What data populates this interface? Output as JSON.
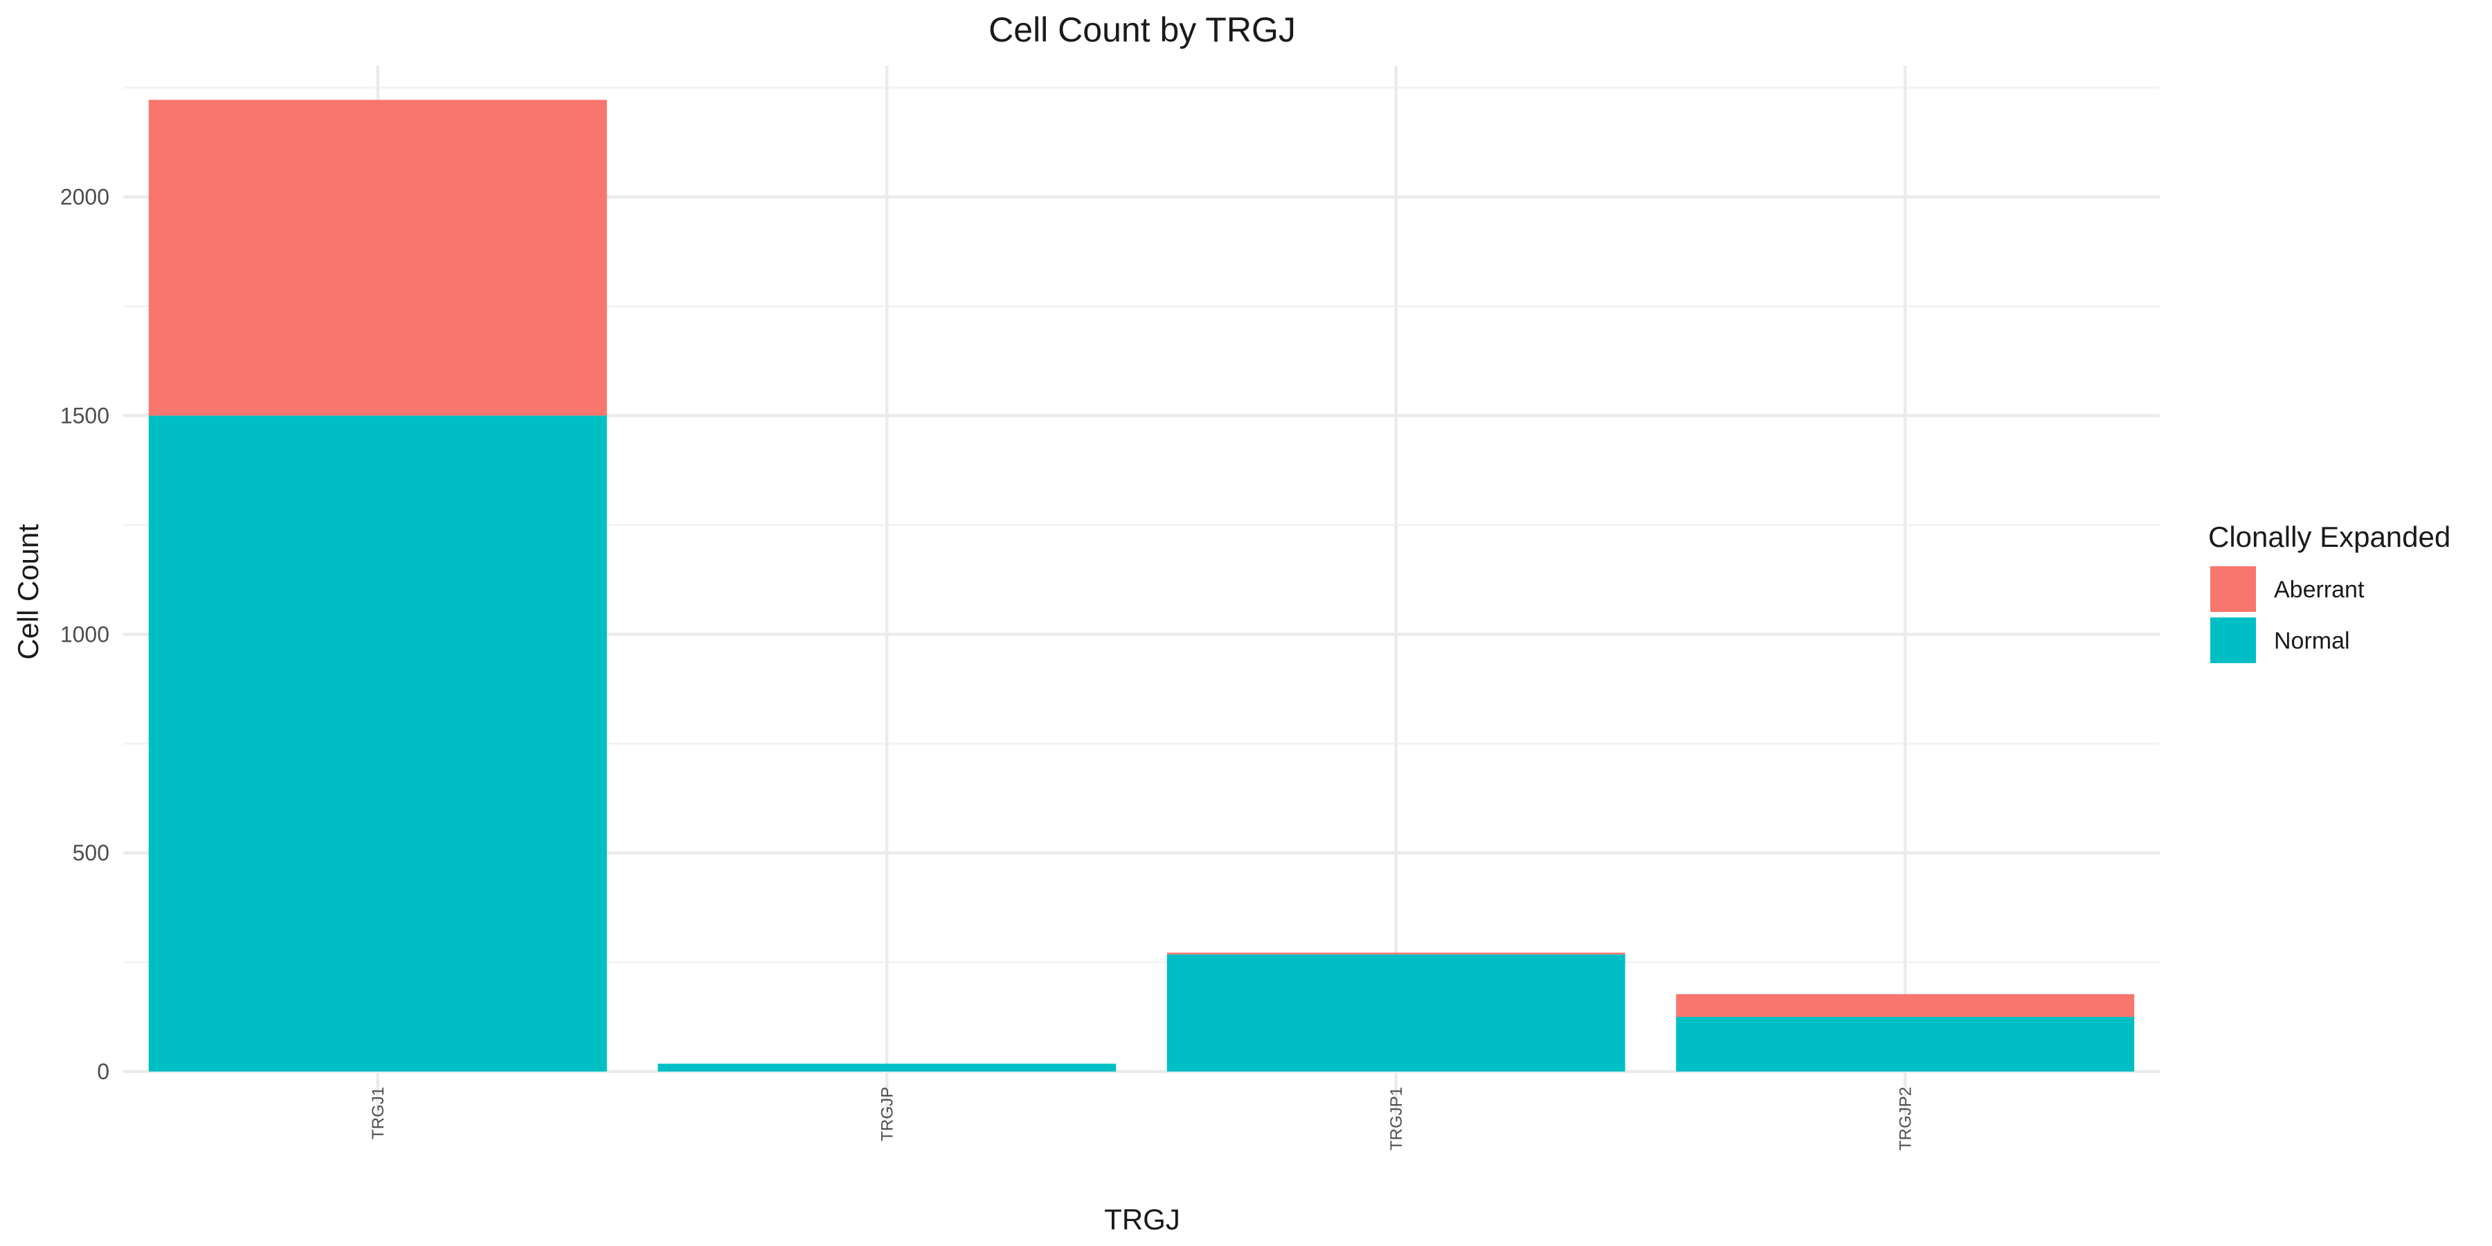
{
  "chart_data": {
    "type": "bar",
    "stacked": true,
    "title": "Cell Count by TRGJ",
    "xlabel": "TRGJ",
    "ylabel": "Cell Count",
    "categories": [
      "TRGJ1",
      "TRGJP",
      "TRGJP1",
      "TRGJP2"
    ],
    "ylim": [
      0,
      2300
    ],
    "yticks": [
      0,
      500,
      1000,
      1500,
      2000
    ],
    "yticks_labels": [
      "0",
      "500",
      "1000",
      "1500",
      "2000"
    ],
    "series": [
      {
        "name": "Normal",
        "color": "#00BFC4",
        "values": [
          1500,
          18,
          268,
          125
        ]
      },
      {
        "name": "Aberrant",
        "color": "#F8766D",
        "values": [
          722,
          0,
          4,
          52
        ]
      }
    ],
    "legend": {
      "title": "Clonally Expanded",
      "position": "right",
      "entries": [
        "Aberrant",
        "Normal"
      ]
    },
    "grid": true
  }
}
